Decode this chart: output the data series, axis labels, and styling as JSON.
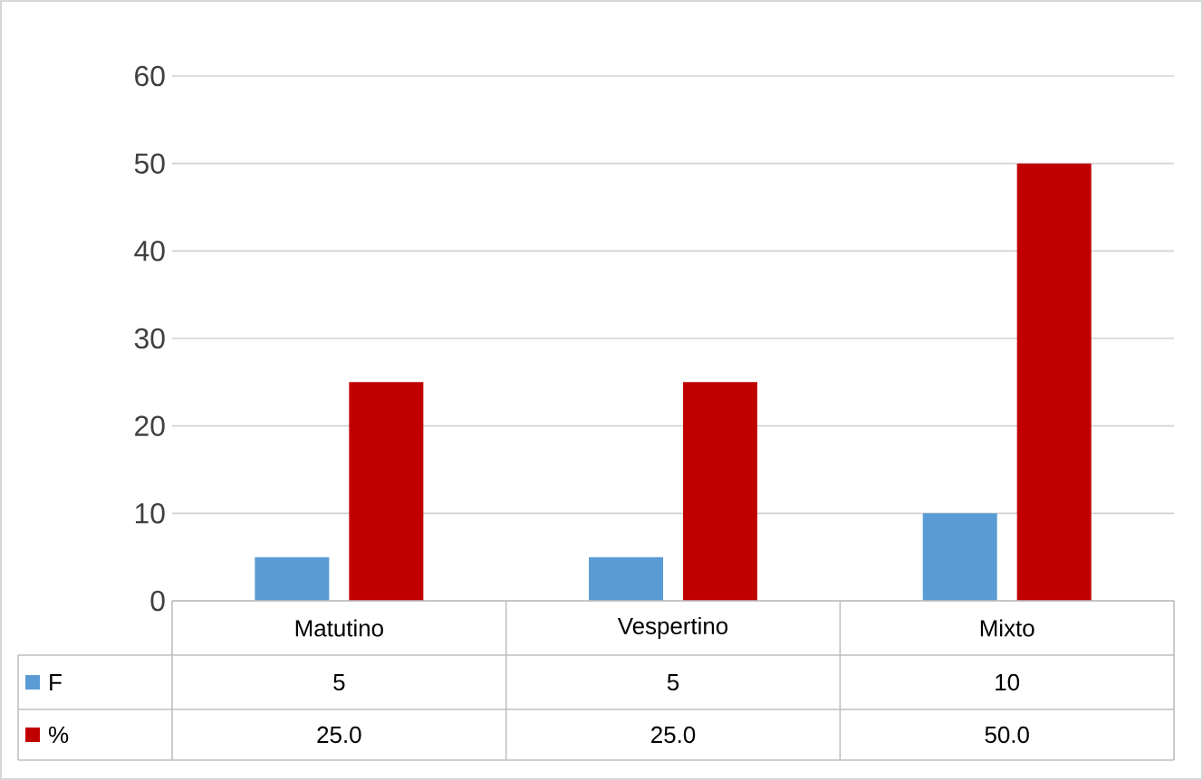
{
  "chart_data": {
    "type": "bar",
    "categories": [
      "Matutino",
      "Vespertino",
      "Mixto"
    ],
    "series": [
      {
        "name": "F",
        "color": "#5b9bd5",
        "values": [
          5,
          5,
          10
        ],
        "value_labels": [
          "5",
          "5",
          "10"
        ]
      },
      {
        "name": "%",
        "color": "#c00000",
        "values": [
          25.0,
          25.0,
          50.0
        ],
        "value_labels": [
          "25.0",
          "25.0",
          "50.0"
        ]
      }
    ],
    "ylim": [
      0,
      60
    ],
    "yticks": [
      0,
      10,
      20,
      30,
      40,
      50,
      60
    ],
    "grid": "y",
    "legend": "bottom left"
  }
}
